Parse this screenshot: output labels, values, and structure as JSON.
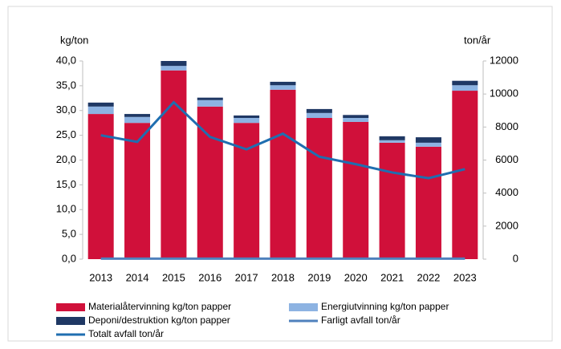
{
  "chart_data": {
    "type": "bar",
    "ylabel": "kg/ton",
    "y2label": "ton/år",
    "categories": [
      "2013",
      "2014",
      "2015",
      "2016",
      "2017",
      "2018",
      "2019",
      "2020",
      "2021",
      "2022",
      "2023"
    ],
    "stacked": true,
    "series": [
      {
        "name": "Materialåtervinning kg/ton papper",
        "type": "bar",
        "color": "#d0103a",
        "values": [
          29.3,
          27.5,
          38.1,
          30.8,
          27.5,
          34.2,
          28.5,
          27.7,
          23.5,
          22.7,
          34.0
        ]
      },
      {
        "name": "Energiutvinning kg/ton papper",
        "type": "bar",
        "color": "#8db3e2",
        "values": [
          1.5,
          1.2,
          0.9,
          1.3,
          1.0,
          0.9,
          1.0,
          0.8,
          0.5,
          0.8,
          1.1
        ]
      },
      {
        "name": "Deponi/destruktion kg/ton papper",
        "type": "bar",
        "color": "#1f3864",
        "values": [
          0.8,
          0.6,
          1.0,
          0.5,
          0.5,
          0.7,
          0.8,
          0.6,
          0.8,
          1.1,
          0.9
        ]
      },
      {
        "name": "Farligt avfall ton/år",
        "type": "line",
        "axis": "y2",
        "color": "#4f81bd",
        "values": [
          30,
          30,
          30,
          30,
          30,
          30,
          30,
          30,
          30,
          30,
          30
        ]
      },
      {
        "name": "Totalt avfall ton/år",
        "type": "line",
        "axis": "y2",
        "color": "#1f6eb0",
        "values": [
          7500,
          7100,
          9500,
          7400,
          6650,
          7600,
          6200,
          5750,
          5250,
          4900,
          5450
        ]
      }
    ],
    "ylim": [
      0,
      40
    ],
    "yticks": [
      {
        "value": 0,
        "label": "0,0"
      },
      {
        "value": 5,
        "label": "5,0"
      },
      {
        "value": 10,
        "label": "10,0"
      },
      {
        "value": 15,
        "label": "15,0"
      },
      {
        "value": 20,
        "label": "20,0"
      },
      {
        "value": 25,
        "label": "25,0"
      },
      {
        "value": 30,
        "label": "30,0"
      },
      {
        "value": 35,
        "label": "35,0"
      },
      {
        "value": 40,
        "label": "40,0"
      }
    ],
    "y2lim": [
      0,
      12000
    ],
    "y2ticks": [
      0,
      2000,
      4000,
      6000,
      8000,
      10000,
      12000
    ],
    "legend": "bottom"
  }
}
